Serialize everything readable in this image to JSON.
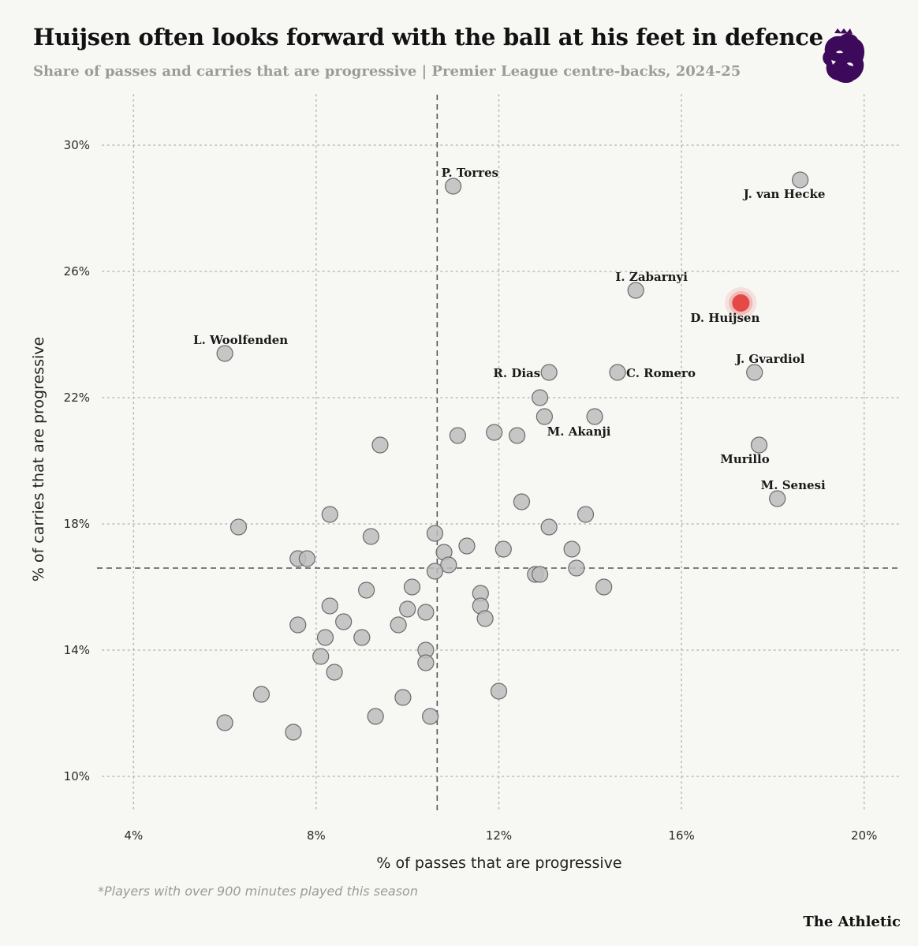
{
  "header": {
    "title": "Huijsen often looks forward with the ball at his feet in defence",
    "subtitle": "Share of passes and carries that are progressive | Premier League centre-backs, 2024-25"
  },
  "logo": {
    "icon": "premier-league-lion-icon",
    "color": "#3d0a5b"
  },
  "footer": {
    "note": "*Players with over 900 minutes played this season",
    "brand": "The Athletic"
  },
  "colors": {
    "background": "#f7f7f3",
    "dot_fill": "#bdbdbd",
    "dot_stroke": "#6b6b6b",
    "highlight": "#e23b3b",
    "grid": "#b8b8b8",
    "median_line": "#555555"
  },
  "chart_data": {
    "type": "scatter",
    "title": "Huijsen often looks forward with the ball at his feet in defence",
    "subtitle": "Share of passes and carries that are progressive | Premier League centre-backs, 2024-25",
    "xlabel": "% of passes that are progressive",
    "ylabel": "% of carries that are progressive",
    "xlim": [
      3.2,
      20.8
    ],
    "ylim": [
      8.6,
      31.6
    ],
    "xticks": [
      4,
      8,
      12,
      16,
      20
    ],
    "yticks": [
      10,
      14,
      18,
      22,
      26,
      30
    ],
    "xtick_labels": [
      "4%",
      "8%",
      "12%",
      "16%",
      "20%"
    ],
    "ytick_labels": [
      "10%",
      "14%",
      "18%",
      "22%",
      "26%",
      "30%"
    ],
    "grid": true,
    "reference_lines": {
      "x": 10.65,
      "y": 16.6
    },
    "highlight": {
      "name": "D. Huijsen",
      "x": 17.3,
      "y": 25.0
    },
    "labeled_points": [
      {
        "name": "P. Torres",
        "x": 11.0,
        "y": 28.7
      },
      {
        "name": "J. van Hecke",
        "x": 18.6,
        "y": 28.9
      },
      {
        "name": "I. Zabarnyi",
        "x": 15.0,
        "y": 25.4
      },
      {
        "name": "L. Woolfenden",
        "x": 6.0,
        "y": 23.4
      },
      {
        "name": "R. Dias",
        "x": 13.1,
        "y": 22.8
      },
      {
        "name": "C. Romero",
        "x": 14.6,
        "y": 22.8
      },
      {
        "name": "J. Gvardiol",
        "x": 17.6,
        "y": 22.8
      },
      {
        "name": "M. Akanji",
        "x": 14.1,
        "y": 21.4
      },
      {
        "name": "Murillo",
        "x": 17.7,
        "y": 20.5
      },
      {
        "name": "M. Senesi",
        "x": 18.1,
        "y": 18.8
      }
    ],
    "other_points": [
      [
        12.9,
        22.0
      ],
      [
        13.0,
        21.4
      ],
      [
        11.9,
        20.9
      ],
      [
        12.4,
        20.8
      ],
      [
        11.1,
        20.8
      ],
      [
        9.4,
        20.5
      ],
      [
        12.5,
        18.7
      ],
      [
        6.3,
        17.9
      ],
      [
        8.3,
        18.3
      ],
      [
        13.9,
        18.3
      ],
      [
        13.1,
        17.9
      ],
      [
        9.2,
        17.6
      ],
      [
        10.6,
        17.7
      ],
      [
        11.3,
        17.3
      ],
      [
        12.1,
        17.2
      ],
      [
        13.6,
        17.2
      ],
      [
        10.8,
        17.1
      ],
      [
        7.6,
        16.9
      ],
      [
        7.8,
        16.9
      ],
      [
        10.9,
        16.7
      ],
      [
        10.6,
        16.5
      ],
      [
        13.7,
        16.6
      ],
      [
        12.8,
        16.4
      ],
      [
        12.9,
        16.4
      ],
      [
        10.1,
        16.0
      ],
      [
        14.3,
        16.0
      ],
      [
        9.1,
        15.9
      ],
      [
        11.6,
        15.8
      ],
      [
        8.3,
        15.4
      ],
      [
        11.6,
        15.4
      ],
      [
        10.0,
        15.3
      ],
      [
        10.4,
        15.2
      ],
      [
        11.7,
        15.0
      ],
      [
        8.6,
        14.9
      ],
      [
        9.8,
        14.8
      ],
      [
        7.6,
        14.8
      ],
      [
        8.2,
        14.4
      ],
      [
        9.0,
        14.4
      ],
      [
        10.4,
        14.0
      ],
      [
        8.1,
        13.8
      ],
      [
        10.4,
        13.6
      ],
      [
        8.4,
        13.3
      ],
      [
        12.0,
        12.7
      ],
      [
        6.8,
        12.6
      ],
      [
        9.9,
        12.5
      ],
      [
        9.3,
        11.9
      ],
      [
        10.5,
        11.9
      ],
      [
        6.0,
        11.7
      ],
      [
        7.5,
        11.4
      ]
    ]
  }
}
